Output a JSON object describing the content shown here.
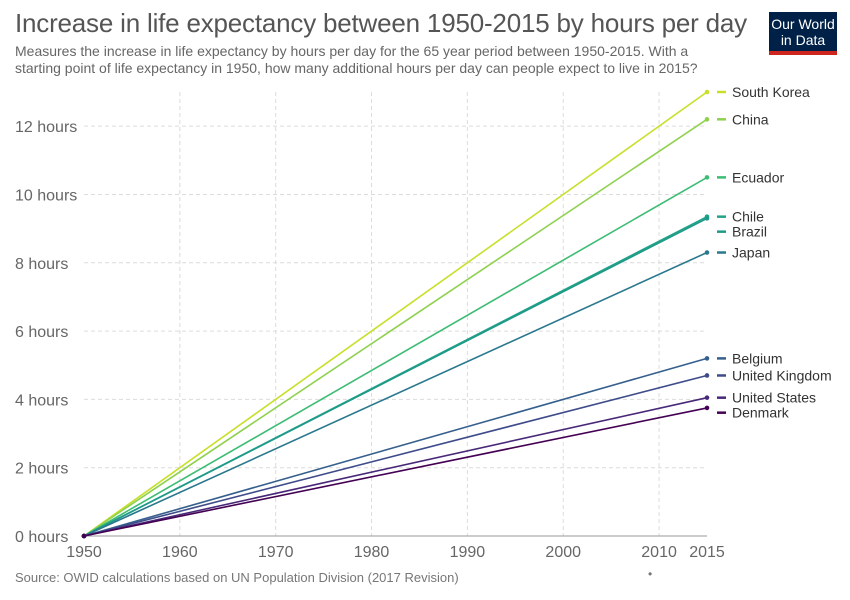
{
  "header": {
    "title": "Increase in life expectancy between 1950-2015 by hours per day",
    "subtitle": "Measures the increase in life expectancy by hours per day for the 65 year period between 1950-2015. With a starting point of life expectancy in 1950, how many additional hours per day can people expect to live in 2015?",
    "logo_line1": "Our World",
    "logo_line2": "in Data"
  },
  "footer": {
    "source": "Source: OWID calculations based on UN Population Division (2017 Revision)",
    "dot": "•"
  },
  "chart_data": {
    "type": "line",
    "title": "Increase in life expectancy between 1950-2015 by hours per day",
    "xlabel": "",
    "ylabel": "",
    "xlim": [
      1950,
      2015
    ],
    "ylim": [
      0,
      13
    ],
    "grid": true,
    "x_ticks": [
      1950,
      1960,
      1970,
      1980,
      1990,
      2000,
      2010,
      2015
    ],
    "y_ticks": [
      0,
      2,
      4,
      6,
      8,
      10,
      12
    ],
    "y_tick_labels": [
      "0 hours",
      "2 hours",
      "4 hours",
      "6 hours",
      "8 hours",
      "10 hours",
      "12 hours"
    ],
    "legend_placement": "right, inline labels at line ends",
    "x": [
      1950,
      2015
    ],
    "series": [
      {
        "name": "South Korea",
        "values": [
          0,
          13.0
        ],
        "color": "#c8df2a"
      },
      {
        "name": "China",
        "values": [
          0,
          12.2
        ],
        "color": "#8fd14f"
      },
      {
        "name": "Ecuador",
        "values": [
          0,
          10.5
        ],
        "color": "#3dbc74"
      },
      {
        "name": "Chile",
        "values": [
          0,
          9.35
        ],
        "color": "#20a386"
      },
      {
        "name": "Brazil",
        "values": [
          0,
          9.3
        ],
        "color": "#1f9a8a"
      },
      {
        "name": "Japan",
        "values": [
          0,
          8.3
        ],
        "color": "#2a788e"
      },
      {
        "name": "Belgium",
        "values": [
          0,
          5.2
        ],
        "color": "#355f8d"
      },
      {
        "name": "United Kingdom",
        "values": [
          0,
          4.7
        ],
        "color": "#3e4c8a"
      },
      {
        "name": "United States",
        "values": [
          0,
          4.05
        ],
        "color": "#482878"
      },
      {
        "name": "Denmark",
        "values": [
          0,
          3.75
        ],
        "color": "#440154"
      }
    ]
  }
}
